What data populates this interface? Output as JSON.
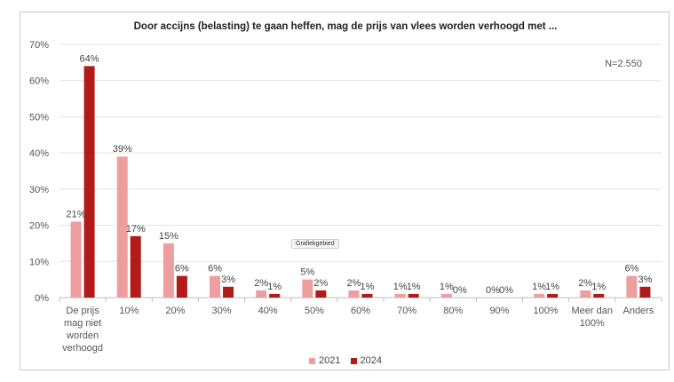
{
  "chart_data": {
    "type": "bar",
    "title": "Door accijns (belasting) te gaan heffen, mag de prijs van vlees worden verhoogd met ...",
    "note": "N=2.550",
    "tooltip": "Grafiekgebied",
    "categories": [
      [
        "De prijs",
        "mag niet",
        "worden",
        "verhoogd"
      ],
      [
        "10%"
      ],
      [
        "20%"
      ],
      [
        "30%"
      ],
      [
        "40%"
      ],
      [
        "50%"
      ],
      [
        "60%"
      ],
      [
        "70%"
      ],
      [
        "80%"
      ],
      [
        "90%"
      ],
      [
        "100%"
      ],
      [
        "Meer dan",
        "100%"
      ],
      [
        "Anders"
      ]
    ],
    "series": [
      {
        "name": "2021",
        "color": "#ee9e9e",
        "values": [
          21,
          39,
          15,
          6,
          2,
          5,
          2,
          1,
          1,
          0,
          1,
          2,
          6
        ]
      },
      {
        "name": "2024",
        "color": "#b31b1b",
        "values": [
          64,
          17,
          6,
          3,
          1,
          2,
          1,
          1,
          0,
          0,
          1,
          1,
          3
        ]
      }
    ],
    "ylim": [
      0,
      70
    ],
    "yticks": [
      "0%",
      "10%",
      "20%",
      "30%",
      "40%",
      "50%",
      "60%",
      "70%"
    ],
    "grid": true,
    "legend_position": "bottom"
  }
}
